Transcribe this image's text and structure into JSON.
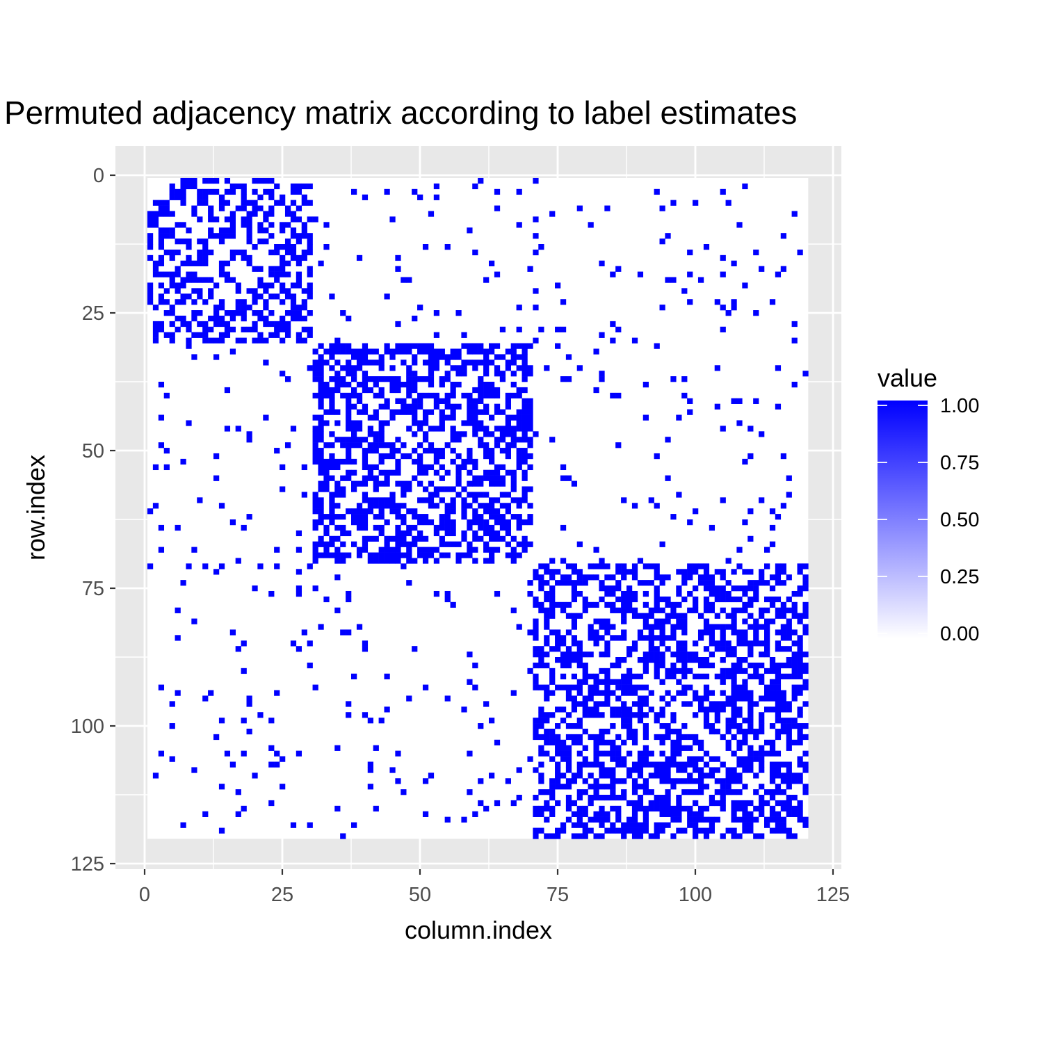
{
  "chart_data": {
    "type": "heatmap",
    "title": "Permuted adjacency matrix according to label estimates",
    "xlabel": "column.index",
    "ylabel": "row.index",
    "xlim": [
      -5,
      127
    ],
    "ylim": [
      -5,
      127
    ],
    "y_reversed": true,
    "grid": true,
    "x_ticks": [
      0,
      25,
      50,
      75,
      100,
      125
    ],
    "y_ticks": [
      0,
      25,
      50,
      75,
      100,
      125
    ],
    "x_tick_labels": [
      "0",
      "25",
      "50",
      "75",
      "100",
      "125"
    ],
    "y_tick_labels": [
      "0",
      "25",
      "50",
      "75",
      "100",
      "125"
    ],
    "n": 120,
    "blocks": [
      {
        "start": 1,
        "end": 30,
        "density": 0.5
      },
      {
        "start": 31,
        "end": 70,
        "density": 0.55
      },
      {
        "start": 71,
        "end": 120,
        "density": 0.55
      }
    ],
    "off_block_density": 0.04,
    "legend": {
      "title": "value",
      "placement": "right",
      "ticks": [
        0.0,
        0.25,
        0.5,
        0.75,
        1.0
      ],
      "tick_labels": [
        "0.00",
        "0.25",
        "0.50",
        "0.75",
        "1.00"
      ],
      "low_color": "#ffffff",
      "high_color": "#0000ff"
    },
    "panel_color": "#e8e8e8",
    "cell_color_on": "#0000ff",
    "cell_color_off": "#ffffff"
  }
}
